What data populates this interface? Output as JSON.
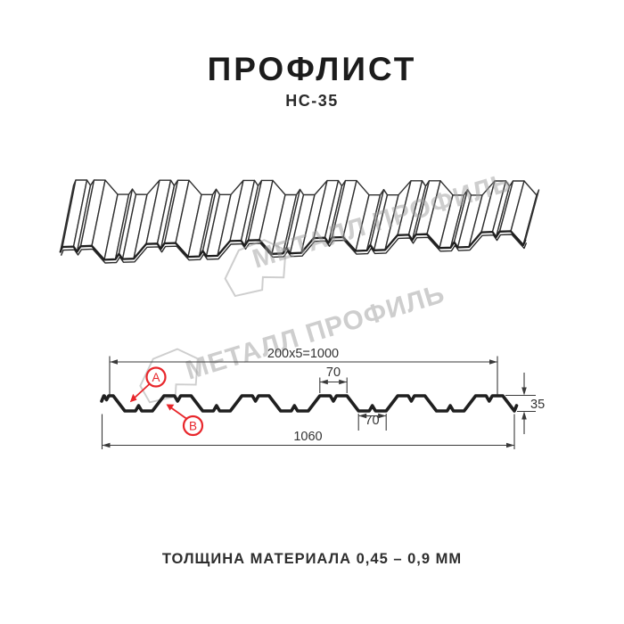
{
  "title": "ПРОФЛИСТ",
  "subtitle": "НС-35",
  "footer": "ТОЛЩИНА МАТЕРИАЛА 0,45 – 0,9 ММ",
  "watermark": {
    "text": "МЕТАЛЛ ПРОФИЛЬ"
  },
  "diagram": {
    "dimensions": {
      "top_width": "200x5=1000",
      "crest_width": "70",
      "valley_width": "70",
      "total_width": "1060",
      "height": "35"
    },
    "callouts": {
      "a": "А",
      "b": "В"
    },
    "colors": {
      "line": "#2a2a2a",
      "profile": "#1f1f1f",
      "callout_red": "#e8262b",
      "watermark_gray": "#9e9e9e"
    }
  }
}
